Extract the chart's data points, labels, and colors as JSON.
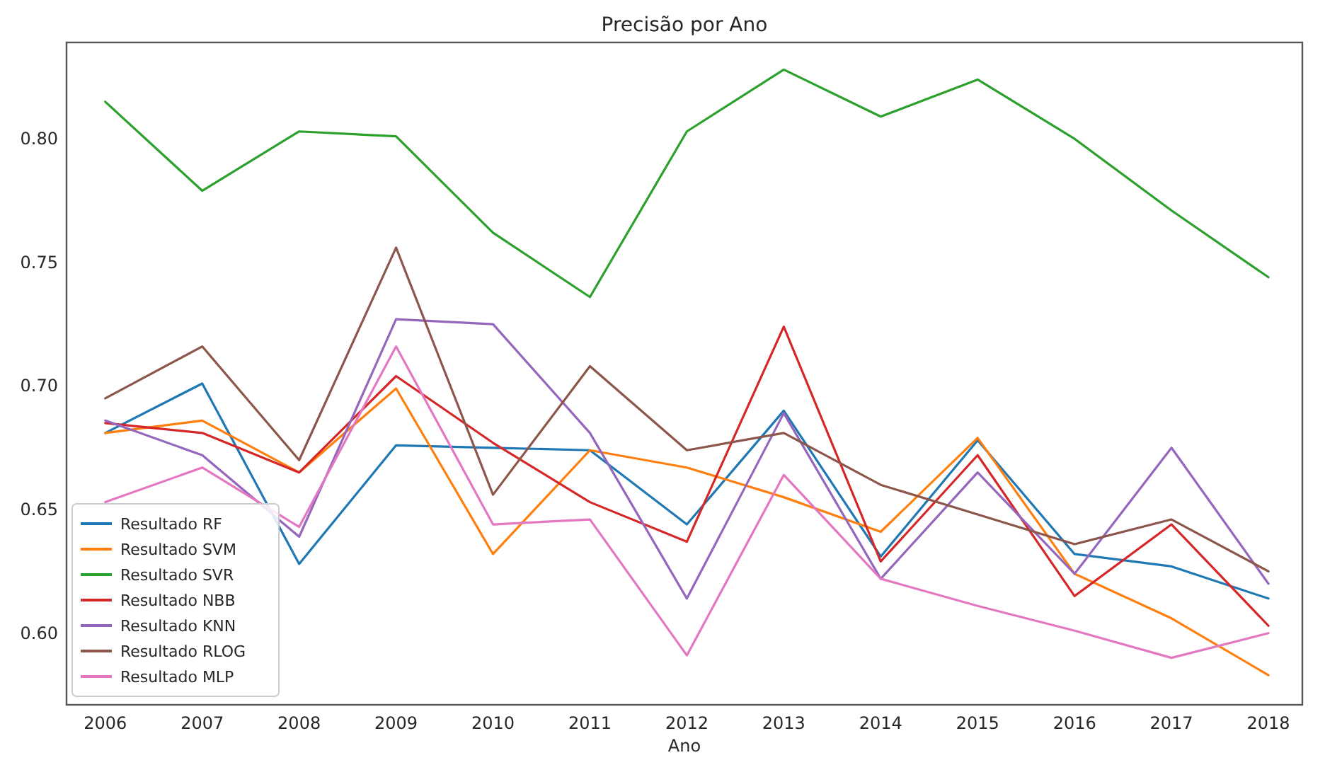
{
  "chart_data": {
    "type": "line",
    "title": "Precisão por Ano",
    "xlabel": "Ano",
    "x": [
      2006,
      2007,
      2008,
      2009,
      2010,
      2011,
      2012,
      2013,
      2014,
      2015,
      2016,
      2017,
      2018
    ],
    "xlim": [
      2005.6,
      2018.35
    ],
    "xticks": [
      2006,
      2007,
      2008,
      2009,
      2010,
      2011,
      2012,
      2013,
      2014,
      2015,
      2016,
      2017,
      2018
    ],
    "ylim": [
      0.571,
      0.839
    ],
    "yticks": [
      {
        "value": 0.6,
        "label": "0.60"
      },
      {
        "value": 0.65,
        "label": "0.65"
      },
      {
        "value": 0.7,
        "label": "0.70"
      },
      {
        "value": 0.75,
        "label": "0.75"
      },
      {
        "value": 0.8,
        "label": "0.80"
      }
    ],
    "grid": false,
    "legend": "bottom left",
    "marker": "none",
    "line_style": "solid",
    "series": [
      {
        "name": "Resultado RF",
        "color": "#1f77b4",
        "values": [
          0.681,
          0.701,
          0.628,
          0.676,
          0.675,
          0.674,
          0.644,
          0.69,
          0.631,
          0.678,
          0.632,
          0.627,
          0.614
        ]
      },
      {
        "name": "Resultado SVM",
        "color": "#ff7f0e",
        "values": [
          0.681,
          0.686,
          0.665,
          0.699,
          0.632,
          0.674,
          0.667,
          0.655,
          0.641,
          0.679,
          0.624,
          0.606,
          0.583
        ]
      },
      {
        "name": "Resultado SVR",
        "color": "#2ca02c",
        "values": [
          0.815,
          0.779,
          0.803,
          0.801,
          0.762,
          0.736,
          0.803,
          0.828,
          0.809,
          0.824,
          0.8,
          0.771,
          0.744
        ]
      },
      {
        "name": "Resultado NBB",
        "color": "#d62728",
        "values": [
          0.685,
          0.681,
          0.665,
          0.704,
          0.677,
          0.653,
          0.637,
          0.724,
          0.629,
          0.672,
          0.615,
          0.644,
          0.603
        ]
      },
      {
        "name": "Resultado KNN",
        "color": "#9467bd",
        "values": [
          0.686,
          0.672,
          0.639,
          0.727,
          0.725,
          0.681,
          0.614,
          0.689,
          0.622,
          0.665,
          0.624,
          0.675,
          0.62
        ]
      },
      {
        "name": "Resultado RLOG",
        "color": "#8c564b",
        "values": [
          0.695,
          0.716,
          0.67,
          0.756,
          0.656,
          0.708,
          0.674,
          0.681,
          0.66,
          0.648,
          0.636,
          0.646,
          0.625
        ]
      },
      {
        "name": "Resultado MLP",
        "color": "#e377c2",
        "values": [
          0.653,
          0.667,
          0.643,
          0.716,
          0.644,
          0.646,
          0.591,
          0.664,
          0.622,
          0.611,
          0.601,
          0.59,
          0.6
        ]
      }
    ]
  }
}
